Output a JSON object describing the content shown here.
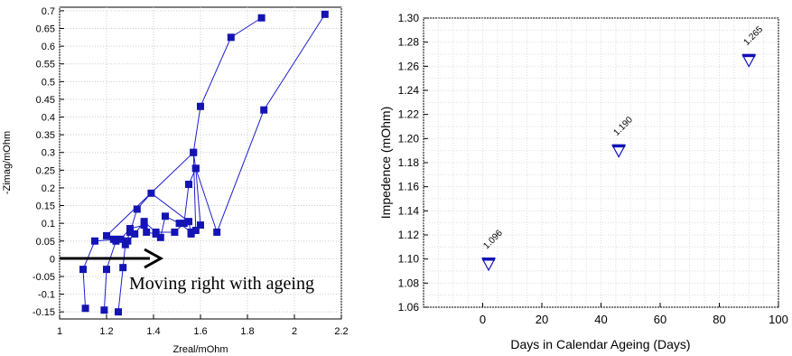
{
  "chart_data": [
    {
      "type": "scatter",
      "title": "",
      "xlabel": "Zreal/mOhm",
      "ylabel": "-Zimag/mOhm",
      "xlim": [
        1,
        2.2
      ],
      "ylim": [
        -0.17,
        0.71
      ],
      "xticks": [
        "1",
        "1.2",
        "1.4",
        "1.6",
        "1.8",
        "2",
        "2.2"
      ],
      "yticks": [
        "0.7",
        "0.65",
        "0.6",
        "0.55",
        "0.5",
        "0.45",
        "0.4",
        "0.35",
        "0.3",
        "0.25",
        "0.2",
        "0.15",
        "0.1",
        "0.05",
        "0",
        "-0.05",
        "-0.1",
        "-0.15"
      ],
      "grid": true,
      "series": [
        {
          "color": "#1f1fcc",
          "marker_color": "#1414b4",
          "points": [
            [
              1.11,
              -0.14
            ],
            [
              1.1,
              -0.03
            ],
            [
              1.15,
              0.05
            ],
            [
              1.26,
              0.055
            ],
            [
              1.3,
              0.085
            ],
            [
              1.36,
              0.095
            ],
            [
              1.37,
              0.075
            ],
            [
              1.41,
              0.07
            ],
            [
              1.43,
              0.06
            ],
            [
              1.45,
              0.12
            ],
            [
              1.51,
              0.1
            ],
            [
              1.56,
              0.075
            ],
            [
              1.58,
              0.08
            ],
            [
              1.57,
              0.3
            ],
            [
              1.6,
              0.43
            ],
            [
              1.73,
              0.625
            ],
            [
              1.86,
              0.68
            ]
          ]
        },
        {
          "color": "#1f1fcc",
          "marker_color": "#1414b4",
          "points": [
            [
              1.19,
              -0.145
            ],
            [
              1.2,
              -0.03
            ],
            [
              1.24,
              0.05
            ],
            [
              1.29,
              0.05
            ],
            [
              1.32,
              0.07
            ],
            [
              1.36,
              0.105
            ],
            [
              1.41,
              0.075
            ],
            [
              1.49,
              0.075
            ],
            [
              1.53,
              0.1
            ],
            [
              1.55,
              0.21
            ],
            [
              1.58,
              0.255
            ],
            [
              1.67,
              0.075
            ],
            [
              1.87,
              0.42
            ],
            [
              2.13,
              0.69
            ]
          ]
        },
        {
          "color": "#1f1fcc",
          "marker_color": "#1414b4",
          "points": [
            [
              1.25,
              -0.15
            ],
            [
              1.27,
              -0.025
            ],
            [
              1.28,
              0.04
            ],
            [
              1.3,
              0.075
            ],
            [
              1.33,
              0.14
            ],
            [
              1.39,
              0.185
            ],
            [
              1.55,
              0.105
            ],
            [
              1.56,
              0.07
            ],
            [
              1.6,
              0.095
            ],
            [
              1.58,
              0.255
            ],
            [
              1.57,
              0.3
            ],
            [
              1.2,
              0.065
            ],
            [
              1.23,
              0.055
            ]
          ]
        }
      ],
      "annotation": "Moving right with ageing"
    },
    {
      "type": "scatter",
      "title": "",
      "xlabel": "Days in Calendar Ageing (Days)",
      "ylabel": "Impedence (mOhm)",
      "xlim": [
        -20,
        100
      ],
      "ylim": [
        1.06,
        1.3
      ],
      "xticks": [
        "0",
        "20",
        "40",
        "60",
        "80",
        "100"
      ],
      "yticks": [
        "1.30",
        "1.28",
        "1.26",
        "1.24",
        "1.22",
        "1.20",
        "1.18",
        "1.16",
        "1.14",
        "1.12",
        "1.10",
        "1.08",
        "1.06"
      ],
      "grid": true,
      "marker_color": "#1010b8",
      "points": [
        {
          "x": 2,
          "y": 1.096,
          "label": "1.096"
        },
        {
          "x": 46,
          "y": 1.19,
          "label": "1.190"
        },
        {
          "x": 90,
          "y": 1.265,
          "label": "1.265"
        }
      ]
    }
  ]
}
